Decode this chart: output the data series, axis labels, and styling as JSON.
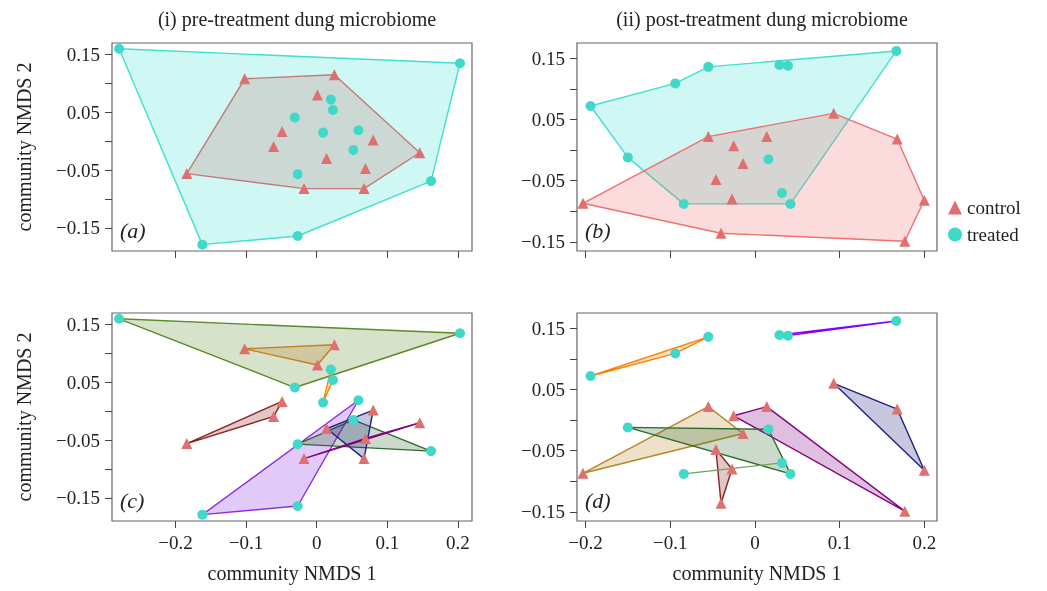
{
  "chart_data": [
    {
      "type": "scatter",
      "title": "(i) pre-treatment dung microbiome",
      "ylabel": "community NMDS 2",
      "annotations": [
        "(a)"
      ],
      "xlim": [
        -0.29,
        0.22
      ],
      "ylim": [
        -0.19,
        0.17
      ],
      "xticks": [
        -0.2,
        -0.1,
        0,
        0.1,
        0.2
      ],
      "yticks": [
        0.15,
        {
          "value": 0.1,
          "label": null
        },
        0.05,
        {
          "value": 0,
          "label": null
        },
        -0.05,
        {
          "value": -0.1,
          "label": null
        },
        -0.15
      ],
      "tick_labels": "y",
      "grid": false,
      "series": [
        {
          "type": "area",
          "color": "#40e0d0",
          "x": [
            -0.28,
            0.203,
            0.162,
            -0.027,
            -0.162
          ],
          "values": [
            0.16,
            0.135,
            -0.069,
            -0.164,
            -0.179
          ]
        },
        {
          "type": "area",
          "color": "#c47a78",
          "x": [
            -0.102,
            0.025,
            0.146,
            0.067,
            -0.018,
            -0.184
          ],
          "values": [
            0.108,
            0.115,
            -0.02,
            -0.082,
            -0.082,
            -0.056
          ]
        },
        {
          "marker": "triangle",
          "color": "#e07070",
          "x": [
            -0.102,
            0.025,
            0.146,
            0.067,
            -0.018,
            -0.184,
            0.001,
            -0.049,
            -0.061,
            0.014,
            0.08,
            0.069
          ],
          "values": [
            0.108,
            0.115,
            -0.02,
            -0.082,
            -0.082,
            -0.056,
            0.08,
            0.017,
            -0.009,
            -0.03,
            0.002,
            -0.047
          ]
        },
        {
          "marker": "circle",
          "color": "#40d8c8",
          "x": [
            -0.28,
            0.203,
            0.162,
            -0.027,
            -0.162,
            0.02,
            0.023,
            -0.031,
            0.009,
            0.059,
            0.052,
            -0.027
          ],
          "values": [
            0.16,
            0.135,
            -0.069,
            -0.164,
            -0.179,
            0.072,
            0.054,
            0.041,
            0.015,
            0.019,
            -0.015,
            -0.057
          ]
        }
      ]
    },
    {
      "type": "scatter",
      "title": "(ii) post-treatment dung microbiome",
      "annotations": [
        "(b)"
      ],
      "xlim": [
        -0.21,
        0.215
      ],
      "ylim": [
        -0.165,
        0.175
      ],
      "xticks": [
        -0.2,
        -0.1,
        0,
        0.1,
        0.2
      ],
      "yticks": [
        0.15,
        {
          "value": 0.1,
          "label": null
        },
        0.05,
        {
          "value": 0,
          "label": null
        },
        -0.05,
        {
          "value": -0.1,
          "label": null
        },
        -0.15
      ],
      "tick_labels": "y",
      "grid": false,
      "legend": "right",
      "series": [
        {
          "type": "area",
          "color": "#40e0d0",
          "x": [
            -0.194,
            -0.094,
            -0.055,
            0.167,
            0.042,
            -0.084,
            -0.15
          ],
          "values": [
            0.072,
            0.109,
            0.136,
            0.162,
            -0.088,
            -0.088,
            -0.012
          ]
        },
        {
          "type": "area",
          "color": "#f07070",
          "x": [
            -0.203,
            -0.055,
            0.093,
            0.168,
            0.2,
            0.177,
            -0.04
          ],
          "values": [
            -0.087,
            0.022,
            0.06,
            0.018,
            -0.082,
            -0.149,
            -0.136
          ]
        },
        {
          "name": "control",
          "marker": "triangle",
          "color": "#e07070",
          "x": [
            -0.203,
            -0.04,
            0.177,
            0.2,
            0.168,
            0.093,
            -0.055,
            0.014,
            -0.025,
            -0.014,
            -0.046,
            -0.027
          ],
          "values": [
            -0.087,
            -0.136,
            -0.149,
            -0.082,
            0.018,
            0.06,
            0.022,
            0.022,
            0.007,
            -0.022,
            -0.048,
            -0.08
          ]
        },
        {
          "name": "treated",
          "marker": "circle",
          "color": "#40d8c8",
          "x": [
            -0.194,
            -0.15,
            -0.094,
            -0.055,
            0.029,
            0.039,
            0.167,
            -0.084,
            0.042,
            0.016,
            0.032
          ],
          "values": [
            0.072,
            -0.012,
            0.109,
            0.136,
            0.139,
            0.138,
            0.162,
            -0.088,
            -0.088,
            -0.015,
            -0.07
          ]
        }
      ]
    },
    {
      "type": "scatter",
      "xlabel": "community NMDS 1",
      "ylabel": "community NMDS 2",
      "annotations": [
        "(c)"
      ],
      "xlim": [
        -0.29,
        0.22
      ],
      "ylim": [
        -0.19,
        0.17
      ],
      "xticks": [
        -0.2,
        -0.1,
        0,
        0.1,
        0.2
      ],
      "yticks": [
        0.15,
        {
          "value": 0.1,
          "label": null
        },
        0.05,
        {
          "value": 0,
          "label": null
        },
        -0.05,
        {
          "value": -0.1,
          "label": null
        },
        -0.15
      ],
      "grid": false,
      "series": [
        {
          "type": "area",
          "color": "#5a8a2a",
          "x": [
            -0.28,
            0.203,
            -0.031
          ],
          "values": [
            0.16,
            0.135,
            0.041
          ]
        },
        {
          "type": "area",
          "color": "#c08020",
          "x": [
            -0.102,
            0.025,
            0.001
          ],
          "values": [
            0.108,
            0.115,
            0.08
          ]
        },
        {
          "type": "area",
          "color": "#ff8000",
          "x": [
            0.02,
            0.023,
            0.009
          ],
          "values": [
            0.072,
            0.054,
            0.015
          ]
        },
        {
          "type": "area",
          "color": "#8b2020",
          "x": [
            -0.049,
            -0.061,
            -0.184
          ],
          "values": [
            0.017,
            -0.009,
            -0.056
          ]
        },
        {
          "type": "area",
          "color": "#8a2be2",
          "x": [
            0.059,
            -0.027,
            -0.162
          ],
          "values": [
            0.019,
            -0.164,
            -0.179
          ]
        },
        {
          "type": "area",
          "color": "#2e6b2e",
          "x": [
            -0.027,
            0.052,
            0.162
          ],
          "values": [
            -0.057,
            -0.015,
            -0.069
          ]
        },
        {
          "type": "area",
          "color": "#202080",
          "x": [
            0.08,
            0.014,
            0.067
          ],
          "values": [
            0.002,
            -0.03,
            -0.082
          ]
        },
        {
          "type": "area",
          "color": "#800080",
          "x": [
            -0.018,
            0.069,
            0.146
          ],
          "values": [
            -0.082,
            -0.047,
            -0.02
          ]
        },
        {
          "marker": "triangle",
          "color": "#e07070",
          "x": [
            -0.102,
            0.025,
            0.146,
            0.067,
            -0.018,
            -0.184,
            0.001,
            -0.049,
            -0.061,
            0.014,
            0.08,
            0.069
          ],
          "values": [
            0.108,
            0.115,
            -0.02,
            -0.082,
            -0.082,
            -0.056,
            0.08,
            0.017,
            -0.009,
            -0.03,
            0.002,
            -0.047
          ]
        },
        {
          "marker": "circle",
          "color": "#40d8c8",
          "x": [
            -0.28,
            0.203,
            0.162,
            -0.027,
            -0.162,
            0.02,
            0.023,
            -0.031,
            0.009,
            0.059,
            0.052,
            -0.027
          ],
          "values": [
            0.16,
            0.135,
            -0.069,
            -0.164,
            -0.179,
            0.072,
            0.054,
            0.041,
            0.015,
            0.019,
            -0.015,
            -0.057
          ]
        }
      ]
    },
    {
      "type": "scatter",
      "xlabel": "community NMDS 1",
      "annotations": [
        "(d)"
      ],
      "xlim": [
        -0.21,
        0.215
      ],
      "ylim": [
        -0.165,
        0.175
      ],
      "xticks": [
        -0.2,
        -0.1,
        0,
        0.1,
        0.2
      ],
      "yticks": [
        0.15,
        {
          "value": 0.1,
          "label": null
        },
        0.05,
        {
          "value": 0,
          "label": null
        },
        -0.05,
        {
          "value": -0.1,
          "label": null
        },
        -0.15
      ],
      "grid": false,
      "series": [
        {
          "type": "area",
          "color": "#ff8000",
          "x": [
            -0.194,
            -0.094,
            -0.055
          ],
          "values": [
            0.072,
            0.109,
            0.136
          ]
        },
        {
          "type": "area",
          "color": "#8000ff",
          "x": [
            0.029,
            0.039,
            0.167
          ],
          "values": [
            0.139,
            0.138,
            0.162
          ]
        },
        {
          "type": "area",
          "color": "#202080",
          "x": [
            0.093,
            0.168,
            0.2
          ],
          "values": [
            0.06,
            0.018,
            -0.082
          ]
        },
        {
          "type": "area",
          "color": "#b8862b",
          "x": [
            -0.203,
            -0.055,
            -0.014
          ],
          "values": [
            -0.087,
            0.022,
            -0.022
          ]
        },
        {
          "type": "area",
          "color": "#800080",
          "x": [
            -0.025,
            0.014,
            0.177
          ],
          "values": [
            0.007,
            0.022,
            -0.149
          ]
        },
        {
          "type": "area",
          "color": "#2e6b2e",
          "x": [
            -0.15,
            0.016,
            0.042
          ],
          "values": [
            -0.012,
            -0.015,
            -0.088
          ]
        },
        {
          "type": "line",
          "color": "#6aa84f",
          "x": [
            -0.084,
            0.032
          ],
          "values": [
            -0.088,
            -0.07
          ]
        },
        {
          "type": "area",
          "color": "#8b2020",
          "x": [
            -0.046,
            -0.04,
            -0.027
          ],
          "values": [
            -0.048,
            -0.136,
            -0.08
          ]
        },
        {
          "marker": "triangle",
          "color": "#e07070",
          "x": [
            -0.203,
            -0.04,
            0.177,
            0.2,
            0.168,
            0.093,
            -0.055,
            0.014,
            -0.025,
            -0.014,
            -0.046,
            -0.027
          ],
          "values": [
            -0.087,
            -0.136,
            -0.149,
            -0.082,
            0.018,
            0.06,
            0.022,
            0.022,
            0.007,
            -0.022,
            -0.048,
            -0.08
          ]
        },
        {
          "marker": "circle",
          "color": "#40d8c8",
          "x": [
            -0.194,
            -0.15,
            -0.094,
            -0.055,
            0.029,
            0.039,
            0.167,
            -0.084,
            0.042,
            0.016,
            0.032
          ],
          "values": [
            0.072,
            -0.012,
            0.109,
            0.136,
            0.139,
            0.138,
            0.162,
            -0.088,
            -0.088,
            -0.015,
            -0.07
          ]
        }
      ]
    }
  ]
}
